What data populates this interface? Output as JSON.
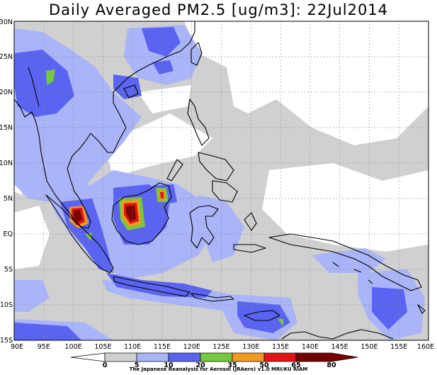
{
  "title": "Daily Averaged PM2.5 [ug/m3]: 22Jul2014",
  "map": {
    "lon_range": [
      90,
      160
    ],
    "lat_range": [
      -15,
      30
    ],
    "grid_lines": "dotted",
    "lon_labels": [
      "90E",
      "95E",
      "100E",
      "105E",
      "110E",
      "115E",
      "120E",
      "125E",
      "130E",
      "135E",
      "140E",
      "145E",
      "150E",
      "155E",
      "160E"
    ],
    "lat_labels": [
      "15S",
      "10S",
      "5S",
      "EQ",
      "5N",
      "10N",
      "15N",
      "20N",
      "25N",
      "30N"
    ]
  },
  "legend": {
    "levels": [
      "0",
      "5",
      "10",
      "20",
      "35",
      "50",
      "65",
      "80"
    ],
    "colors": [
      "#ffffff",
      "#d0d0d0",
      "#aab4f8",
      "#5a64f0",
      "#78c83c",
      "#f09a1e",
      "#e01414",
      "#780000"
    ]
  },
  "credit": "The Japanese Reanalysis for Aerosol (JRAero) v1.0 MRI/KU RIAM"
}
